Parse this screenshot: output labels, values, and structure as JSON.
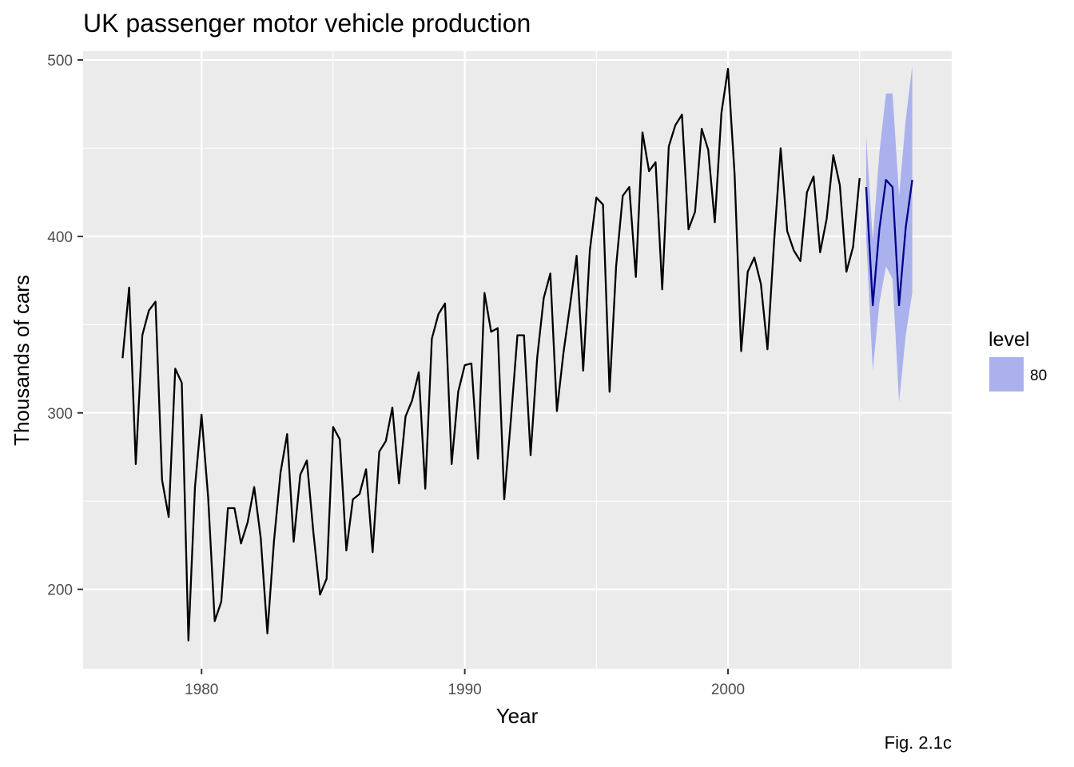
{
  "chart_data": {
    "type": "line",
    "title": "UK passenger motor vehicle production",
    "xlabel": "Year",
    "ylabel": "Thousands of cars",
    "caption": "Fig. 2.1c",
    "xlim": [
      1975.5,
      2008.5
    ],
    "ylim": [
      155,
      505
    ],
    "x_ticks": [
      1980,
      1990,
      2000
    ],
    "y_ticks": [
      200,
      300,
      400,
      500
    ],
    "grid": true,
    "legend": {
      "title": "level",
      "placement": "right",
      "entries": [
        {
          "label": "80",
          "color": "#aab1ed"
        }
      ]
    },
    "series": [
      {
        "color": "#000000",
        "points": [
          [
            1977.0,
            331
          ],
          [
            1977.25,
            371
          ],
          [
            1977.5,
            271
          ],
          [
            1977.75,
            344
          ],
          [
            1978.0,
            358
          ],
          [
            1978.25,
            363
          ],
          [
            1978.5,
            262
          ],
          [
            1978.75,
            241
          ],
          [
            1979.0,
            325
          ],
          [
            1979.25,
            317
          ],
          [
            1979.5,
            171
          ],
          [
            1979.75,
            258
          ],
          [
            1980.0,
            299
          ],
          [
            1980.25,
            252
          ],
          [
            1980.5,
            182
          ],
          [
            1980.75,
            193
          ],
          [
            1981.0,
            246
          ],
          [
            1981.25,
            246
          ],
          [
            1981.5,
            226
          ],
          [
            1981.75,
            238
          ],
          [
            1982.0,
            258
          ],
          [
            1982.25,
            229
          ],
          [
            1982.5,
            175
          ],
          [
            1982.75,
            227
          ],
          [
            1983.0,
            266
          ],
          [
            1983.25,
            288
          ],
          [
            1983.5,
            227
          ],
          [
            1983.75,
            265
          ],
          [
            1984.0,
            273
          ],
          [
            1984.25,
            232
          ],
          [
            1984.5,
            197
          ],
          [
            1984.75,
            206
          ],
          [
            1985.0,
            292
          ],
          [
            1985.25,
            285
          ],
          [
            1985.5,
            222
          ],
          [
            1985.75,
            251
          ],
          [
            1986.0,
            254
          ],
          [
            1986.25,
            268
          ],
          [
            1986.5,
            221
          ],
          [
            1986.75,
            278
          ],
          [
            1987.0,
            284
          ],
          [
            1987.25,
            303
          ],
          [
            1987.5,
            260
          ],
          [
            1987.75,
            298
          ],
          [
            1988.0,
            307
          ],
          [
            1988.25,
            323
          ],
          [
            1988.5,
            257
          ],
          [
            1988.75,
            342
          ],
          [
            1989.0,
            356
          ],
          [
            1989.25,
            362
          ],
          [
            1989.5,
            271
          ],
          [
            1989.75,
            312
          ],
          [
            1990.0,
            327
          ],
          [
            1990.25,
            328
          ],
          [
            1990.5,
            274
          ],
          [
            1990.75,
            368
          ],
          [
            1991.0,
            346
          ],
          [
            1991.25,
            348
          ],
          [
            1991.5,
            251
          ],
          [
            1991.75,
            296
          ],
          [
            1992.0,
            344
          ],
          [
            1992.25,
            344
          ],
          [
            1992.5,
            276
          ],
          [
            1992.75,
            331
          ],
          [
            1993.0,
            365
          ],
          [
            1993.25,
            379
          ],
          [
            1993.5,
            301
          ],
          [
            1993.75,
            334
          ],
          [
            1994.0,
            361
          ],
          [
            1994.25,
            389
          ],
          [
            1994.5,
            324
          ],
          [
            1994.75,
            392
          ],
          [
            1995.0,
            422
          ],
          [
            1995.25,
            418
          ],
          [
            1995.5,
            312
          ],
          [
            1995.75,
            383
          ],
          [
            1996.0,
            423
          ],
          [
            1996.25,
            428
          ],
          [
            1996.5,
            377
          ],
          [
            1996.75,
            459
          ],
          [
            1997.0,
            437
          ],
          [
            1997.25,
            442
          ],
          [
            1997.5,
            370
          ],
          [
            1997.75,
            451
          ],
          [
            1998.0,
            463
          ],
          [
            1998.25,
            469
          ],
          [
            1998.5,
            404
          ],
          [
            1998.75,
            414
          ],
          [
            1999.0,
            461
          ],
          [
            1999.25,
            449
          ],
          [
            1999.5,
            408
          ],
          [
            1999.75,
            470
          ],
          [
            2000.0,
            495
          ],
          [
            2000.25,
            435
          ],
          [
            2000.5,
            335
          ],
          [
            2000.75,
            380
          ],
          [
            2001.0,
            388
          ],
          [
            2001.25,
            373
          ],
          [
            2001.5,
            336
          ],
          [
            2001.75,
            397
          ],
          [
            2002.0,
            450
          ],
          [
            2002.25,
            403
          ],
          [
            2002.5,
            392
          ],
          [
            2002.75,
            386
          ],
          [
            2003.0,
            425
          ],
          [
            2003.25,
            434
          ],
          [
            2003.5,
            391
          ],
          [
            2003.75,
            410
          ],
          [
            2004.0,
            446
          ],
          [
            2004.25,
            429
          ],
          [
            2004.5,
            380
          ],
          [
            2004.75,
            394
          ],
          [
            2005.0,
            433
          ]
        ]
      },
      {
        "color": "#00008b",
        "points": [
          [
            2005.25,
            428
          ],
          [
            2005.5,
            361
          ],
          [
            2005.75,
            404
          ],
          [
            2006.0,
            432
          ],
          [
            2006.25,
            428
          ],
          [
            2006.5,
            361
          ],
          [
            2006.75,
            405
          ],
          [
            2007.0,
            432
          ]
        ],
        "interval_80": {
          "color": "#aab1ed",
          "lower": [
            399,
            324,
            362,
            383,
            376,
            306,
            344,
            368
          ],
          "upper": [
            457,
            398,
            447,
            481,
            481,
            423,
            466,
            497
          ]
        }
      }
    ]
  }
}
